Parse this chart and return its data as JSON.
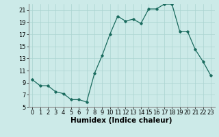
{
  "x": [
    0,
    1,
    2,
    3,
    4,
    5,
    6,
    7,
    8,
    9,
    10,
    11,
    12,
    13,
    14,
    15,
    16,
    17,
    18,
    19,
    20,
    21,
    22,
    23
  ],
  "y": [
    9.5,
    8.5,
    8.5,
    7.5,
    7.2,
    6.2,
    6.2,
    5.8,
    10.5,
    13.5,
    17,
    20,
    19.2,
    19.5,
    18.8,
    21.2,
    21.2,
    22,
    22,
    17.5,
    17.5,
    14.5,
    12.5,
    10.2
  ],
  "xlabel": "Humidex (Indice chaleur)",
  "ylim": [
    5,
    22
  ],
  "xlim": [
    -0.5,
    23.5
  ],
  "yticks": [
    5,
    7,
    9,
    11,
    13,
    15,
    17,
    19,
    21
  ],
  "xticks": [
    0,
    1,
    2,
    3,
    4,
    5,
    6,
    7,
    8,
    9,
    10,
    11,
    12,
    13,
    14,
    15,
    16,
    17,
    18,
    19,
    20,
    21,
    22,
    23
  ],
  "line_color": "#1a6b5e",
  "marker": "D",
  "marker_size": 1.8,
  "bg_color": "#cceae8",
  "grid_color": "#aad4d0",
  "tick_label_fontsize": 6.0,
  "xlabel_fontsize": 7.5,
  "xlabel_fontweight": "bold"
}
